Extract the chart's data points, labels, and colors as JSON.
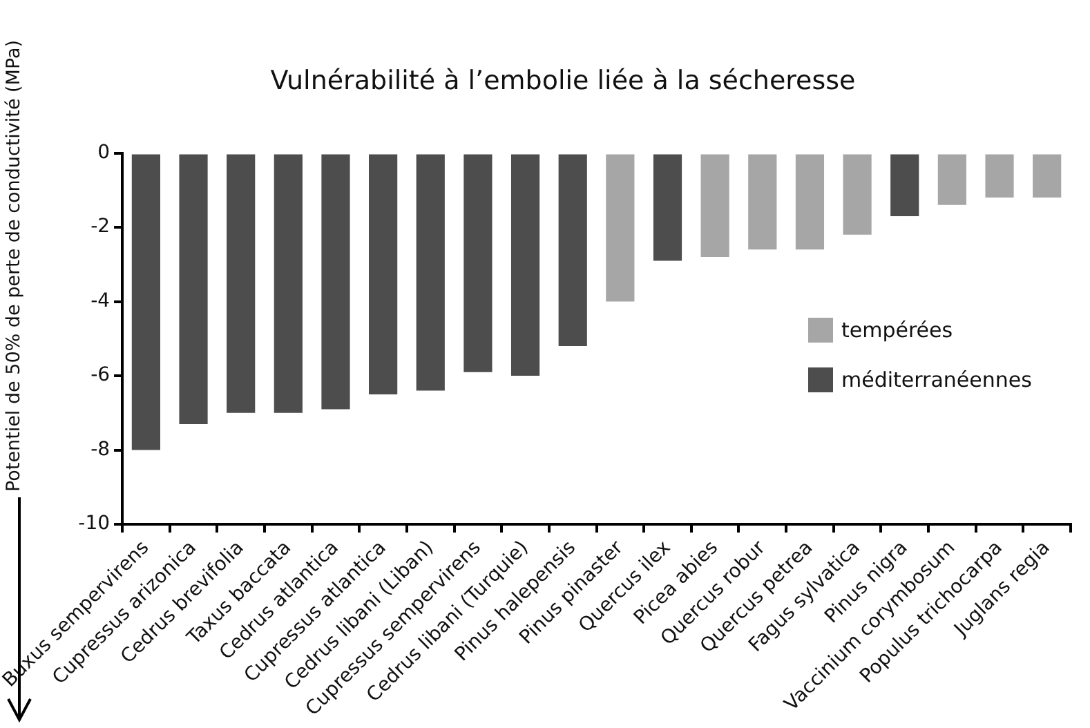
{
  "chart_data": {
    "type": "bar",
    "title": "Vulnérabilité à l’embolie liée à la sécheresse",
    "ylabel": "Potentiel de 50% de perte de conductivité (MPa)",
    "categories": [
      "Buxus sempervirens",
      "Cupressus arizonica",
      "Cedrus brevifolia",
      "Taxus baccata",
      "Cedrus atlantica",
      "Cupressus atlantica",
      "Cedrus libani (Liban)",
      "Cupressus sempervirens",
      "Cedrus libani (Turquie)",
      "Pinus halepensis",
      "Pinus pinaster",
      "Quercus ilex",
      "Picea abies",
      "Quercus robur",
      "Quercus petrea",
      "Fagus sylvatica",
      "Pinus nigra",
      "Vaccinium corymbosum",
      "Populus trichocarpa",
      "Juglans regia"
    ],
    "series": [
      {
        "name": "tempérées",
        "color": "#a6a6a6",
        "values": [
          null,
          null,
          null,
          null,
          null,
          null,
          null,
          null,
          null,
          null,
          -4.0,
          null,
          -2.8,
          -2.6,
          -2.6,
          -2.2,
          null,
          -1.4,
          -1.2,
          -1.2
        ]
      },
      {
        "name": "méditerranéennes",
        "color": "#4d4d4d",
        "values": [
          -8.0,
          -7.3,
          -7.0,
          -7.0,
          -6.9,
          -6.5,
          -6.4,
          -5.9,
          -6.0,
          -5.2,
          null,
          -2.9,
          null,
          null,
          null,
          null,
          -1.7,
          null,
          null,
          null
        ]
      }
    ],
    "ylim": [
      -10,
      0
    ],
    "yticks": [
      0,
      -2,
      -4,
      -6,
      -8,
      -10
    ],
    "grid": false,
    "legend": "bottom right"
  }
}
